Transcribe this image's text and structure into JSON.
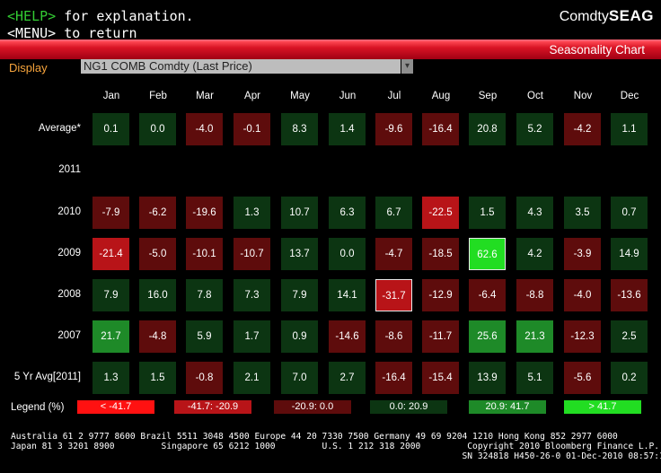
{
  "header": {
    "help_key": "<HELP>",
    "help_text": " for explanation.",
    "menu_text": "<MENU> to return",
    "brand_prefix": "Comdty",
    "brand_code": "SEAG",
    "panel_title": "Seasonality Chart"
  },
  "display": {
    "label": "Display",
    "value": "NG1 COMB Comdty (Last Price)",
    "dropdown_glyph": "▾"
  },
  "months": [
    "Jan",
    "Feb",
    "Mar",
    "Apr",
    "May",
    "Jun",
    "Jul",
    "Aug",
    "Sep",
    "Oct",
    "Nov",
    "Dec"
  ],
  "rows": [
    {
      "label": "Average*",
      "values": [
        "0.1",
        "0.0",
        "-4.0",
        "-0.1",
        "8.3",
        "1.4",
        "-9.6",
        "-16.4",
        "20.8",
        "5.2",
        "-4.2",
        "1.1"
      ]
    },
    {
      "label": "2011",
      "values": []
    },
    {
      "label": "2010",
      "values": [
        "-7.9",
        "-6.2",
        "-19.6",
        "1.3",
        "10.7",
        "6.3",
        "6.7",
        "-22.5",
        "1.5",
        "4.3",
        "3.5",
        "0.7"
      ]
    },
    {
      "label": "2009",
      "values": [
        "-21.4",
        "-5.0",
        "-10.1",
        "-10.7",
        "13.7",
        "0.0",
        "-4.7",
        "-18.5",
        "62.6",
        "4.2",
        "-3.9",
        "14.9"
      ]
    },
    {
      "label": "2008",
      "values": [
        "7.9",
        "16.0",
        "7.8",
        "7.3",
        "7.9",
        "14.1",
        "-31.7",
        "-12.9",
        "-6.4",
        "-8.8",
        "-4.0",
        "-13.6"
      ]
    },
    {
      "label": "2007",
      "values": [
        "21.7",
        "-4.8",
        "5.9",
        "1.7",
        "0.9",
        "-14.6",
        "-8.6",
        "-11.7",
        "25.6",
        "21.3",
        "-12.3",
        "2.5"
      ]
    },
    {
      "label": "5 Yr Avg[2011]",
      "values": [
        "1.3",
        "1.5",
        "-0.8",
        "2.1",
        "7.0",
        "2.7",
        "-16.4",
        "-15.4",
        "13.9",
        "5.1",
        "-5.6",
        "0.2"
      ]
    }
  ],
  "legend": {
    "label": "Legend (%)",
    "items": [
      {
        "text": "< -41.7",
        "color": "#ff1111"
      },
      {
        "text": "-41.7: -20.9",
        "color": "#b81418"
      },
      {
        "text": "-20.9: 0.0",
        "color": "#5e0c0c"
      },
      {
        "text": "0.0: 20.9",
        "color": "#0c3512"
      },
      {
        "text": "20.9: 41.7",
        "color": "#1e8a28"
      },
      {
        "text": "> 41.7",
        "color": "#22dd22"
      }
    ]
  },
  "colors": {
    "bright_red": "#ff1111",
    "red": "#b81418",
    "dark_red": "#5e0c0c",
    "dark_green": "#0c3512",
    "green": "#1e8a28",
    "bright_green": "#22dd22"
  },
  "footer": {
    "line1": "Australia 61 2 9777 8600 Brazil 5511 3048 4500 Europe 44 20 7330 7500 Germany 49 69 9204 1210 Hong Kong 852 2977 6000",
    "line2": "Japan 81 3 3201 8900         Singapore 65 6212 1000         U.S. 1 212 318 2000         Copyright 2010 Bloomberg Finance L.P.",
    "line3": "                                                                                       SN 324818 H450-26-0 01-Dec-2010 08:57:15"
  }
}
